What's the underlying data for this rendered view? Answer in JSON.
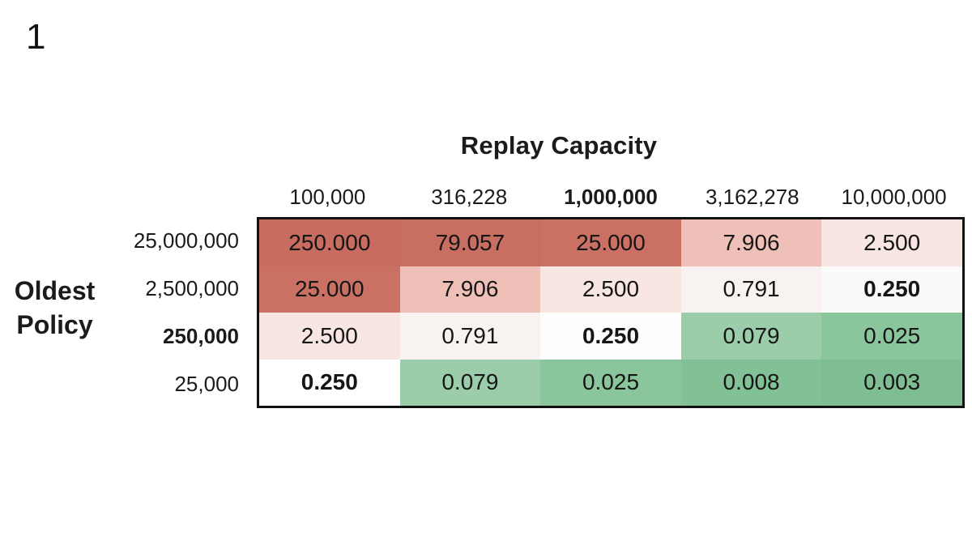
{
  "page": {
    "slide_number": "1",
    "background": "#ffffff",
    "text_color": "#1b1b1b"
  },
  "chart_data": {
    "type": "heatmap",
    "title": "Replay Capacity",
    "ylabel": "Oldest Policy",
    "columns": [
      "100,000",
      "316,228",
      "1,000,000",
      "3,162,278",
      "10,000,000"
    ],
    "rows": [
      "25,000,000",
      "2,500,000",
      "250,000",
      "25,000"
    ],
    "bold_column_index": 2,
    "bold_row_index": 2,
    "values": [
      [
        250.0,
        79.057,
        25.0,
        7.906,
        2.5
      ],
      [
        25.0,
        7.906,
        2.5,
        0.791,
        0.25
      ],
      [
        2.5,
        0.791,
        0.25,
        0.079,
        0.025
      ],
      [
        0.25,
        0.079,
        0.025,
        0.008,
        0.003
      ]
    ],
    "cell_labels": [
      [
        "250.000",
        "79.057",
        "25.000",
        "7.906",
        "2.500"
      ],
      [
        "25.000",
        "7.906",
        "2.500",
        "0.791",
        "0.250"
      ],
      [
        "2.500",
        "0.791",
        "0.250",
        "0.079",
        "0.025"
      ],
      [
        "0.250",
        "0.079",
        "0.025",
        "0.008",
        "0.003"
      ]
    ],
    "bold_cells": [
      [
        1,
        4
      ],
      [
        2,
        2
      ],
      [
        3,
        0
      ]
    ],
    "cell_colors": [
      [
        "#c76c5f",
        "#c96f62",
        "#ca7164",
        "#efc0b8",
        "#f7e6e1"
      ],
      [
        "#ca7164",
        "#efc0b8",
        "#f7e6e1",
        "#f8f2f0",
        "#fbfafa"
      ],
      [
        "#f7e6e1",
        "#f8f2f0",
        "#fdfdfd",
        "#9bcdaa",
        "#8ac59b"
      ],
      [
        "#ffffff",
        "#9bcdaa",
        "#8ac59b",
        "#82c095",
        "#7fbe92"
      ]
    ],
    "colorscale": {
      "high_red": "#c76c5f",
      "mid_white": "#ffffff",
      "low_green": "#7fbe92",
      "diverging_center_value": 0.25
    },
    "grid": false,
    "border_color": "#111111",
    "legend": "none"
  }
}
